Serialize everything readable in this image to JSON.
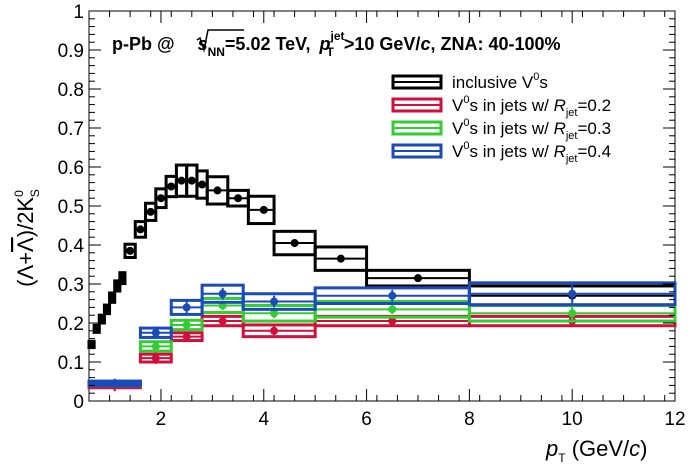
{
  "chart_data": {
    "type": "scatter",
    "header": {
      "collision": "p-Pb @",
      "energy_sym": "s",
      "energy_sub": "NN",
      "energy_val": "=5.02 TeV,",
      "pt_sym": "p",
      "pt_sup": "jet",
      "pt_sub": "T",
      "pt_cut": ">10 GeV/",
      "pt_unit": "c",
      "centrality": ", ZNA: 40-100%"
    },
    "xlabel": {
      "sym": "p",
      "sub": "T",
      "unit_open": " (GeV/",
      "unit_c": "c",
      "unit_close": ")"
    },
    "ylabel": {
      "ratio": "(Λ+",
      "lambdabar": "Λ",
      "slash": ")/2K",
      "sup": "0",
      "sub": "S"
    },
    "xlim": [
      0.6,
      12
    ],
    "ylim": [
      0,
      1
    ],
    "xticks": [
      "2",
      "4",
      "6",
      "8",
      "10",
      "12"
    ],
    "xtick_values": [
      2,
      4,
      6,
      8,
      10,
      12
    ],
    "yticks": [
      "0",
      "0.1",
      "0.2",
      "0.3",
      "0.4",
      "0.5",
      "0.6",
      "0.7",
      "0.8",
      "0.9",
      "1"
    ],
    "ytick_values": [
      0,
      0.1,
      0.2,
      0.3,
      0.4,
      0.5,
      0.6,
      0.7,
      0.8,
      0.9,
      1.0
    ],
    "grid": false,
    "legend_position": "top-right",
    "series": [
      {
        "name": "inclusive V0s",
        "legend": {
          "pre": "inclusive V",
          "sup": "0",
          "post": "s",
          "R": "",
          "Rsub": "",
          "Rval": ""
        },
        "color": "#000000",
        "points": [
          {
            "x": 0.65,
            "y": 0.145,
            "xlo": 0.6,
            "xhi": 0.7,
            "sys": 0.008
          },
          {
            "x": 0.75,
            "y": 0.185,
            "xlo": 0.7,
            "xhi": 0.8,
            "sys": 0.009
          },
          {
            "x": 0.85,
            "y": 0.21,
            "xlo": 0.8,
            "xhi": 0.9,
            "sys": 0.01
          },
          {
            "x": 0.95,
            "y": 0.235,
            "xlo": 0.9,
            "xhi": 1.0,
            "sys": 0.011
          },
          {
            "x": 1.05,
            "y": 0.265,
            "xlo": 1.0,
            "xhi": 1.1,
            "sys": 0.012
          },
          {
            "x": 1.15,
            "y": 0.295,
            "xlo": 1.1,
            "xhi": 1.2,
            "sys": 0.013
          },
          {
            "x": 1.25,
            "y": 0.315,
            "xlo": 1.2,
            "xhi": 1.3,
            "sys": 0.014
          },
          {
            "x": 1.4,
            "y": 0.385,
            "xlo": 1.3,
            "xhi": 1.5,
            "sys": 0.017
          },
          {
            "x": 1.6,
            "y": 0.44,
            "xlo": 1.5,
            "xhi": 1.7,
            "sys": 0.02
          },
          {
            "x": 1.8,
            "y": 0.485,
            "xlo": 1.7,
            "xhi": 1.9,
            "sys": 0.022
          },
          {
            "x": 2.0,
            "y": 0.52,
            "xlo": 1.9,
            "xhi": 2.1,
            "sys": 0.024
          },
          {
            "x": 2.2,
            "y": 0.55,
            "xlo": 2.1,
            "xhi": 2.3,
            "sys": 0.026
          },
          {
            "x": 2.4,
            "y": 0.565,
            "xlo": 2.3,
            "xhi": 2.5,
            "sys": 0.04
          },
          {
            "x": 2.6,
            "y": 0.565,
            "xlo": 2.5,
            "xhi": 2.7,
            "sys": 0.04
          },
          {
            "x": 2.8,
            "y": 0.555,
            "xlo": 2.7,
            "xhi": 2.9,
            "sys": 0.035
          },
          {
            "x": 3.1,
            "y": 0.54,
            "xlo": 2.9,
            "xhi": 3.3,
            "sys": 0.035
          },
          {
            "x": 3.5,
            "y": 0.52,
            "xlo": 3.3,
            "xhi": 3.7,
            "sys": 0.02
          },
          {
            "x": 4.0,
            "y": 0.49,
            "xlo": 3.7,
            "xhi": 4.2,
            "sys": 0.035
          },
          {
            "x": 4.6,
            "y": 0.405,
            "xlo": 4.2,
            "xhi": 5.0,
            "sys": 0.03
          },
          {
            "x": 5.5,
            "y": 0.365,
            "xlo": 5.0,
            "xhi": 6.0,
            "sys": 0.03
          },
          {
            "x": 7.0,
            "y": 0.315,
            "xlo": 6.0,
            "xhi": 8.0,
            "sys": 0.02
          },
          {
            "x": 10.0,
            "y": 0.27,
            "xlo": 8.0,
            "xhi": 12.0,
            "sys": 0.025
          }
        ]
      },
      {
        "name": "V0s in jets w/ Rjet=0.2",
        "legend": {
          "pre": "V",
          "sup": "0",
          "post": "s in jets w/ ",
          "R": "R",
          "Rsub": "jet",
          "Rval": "=0.2"
        },
        "color": "#d0103a",
        "points": [
          {
            "x": 1.1,
            "y": 0.04,
            "xlo": 0.6,
            "xhi": 1.6,
            "sys": 0.006,
            "stat": 0.015
          },
          {
            "x": 1.9,
            "y": 0.11,
            "xlo": 1.6,
            "xhi": 2.2,
            "sys": 0.01,
            "stat": 0.015
          },
          {
            "x": 2.5,
            "y": 0.165,
            "xlo": 2.2,
            "xhi": 2.8,
            "sys": 0.01,
            "stat": 0.012
          },
          {
            "x": 3.2,
            "y": 0.205,
            "xlo": 2.8,
            "xhi": 3.6,
            "sys": 0.012,
            "stat": 0.012
          },
          {
            "x": 4.2,
            "y": 0.18,
            "xlo": 3.6,
            "xhi": 5.0,
            "sys": 0.015,
            "stat": 0.012
          },
          {
            "x": 6.5,
            "y": 0.205,
            "xlo": 5.0,
            "xhi": 8.0,
            "sys": 0.012,
            "stat": 0.012
          },
          {
            "x": 10.0,
            "y": 0.205,
            "xlo": 8.0,
            "xhi": 12.0,
            "sys": 0.012,
            "stat": 0.015
          }
        ]
      },
      {
        "name": "V0s in jets w/ Rjet=0.3",
        "legend": {
          "pre": "V",
          "sup": "0",
          "post": "s in jets w/ ",
          "R": "R",
          "Rsub": "jet",
          "Rval": "=0.3"
        },
        "color": "#33cc33",
        "points": [
          {
            "x": 1.1,
            "y": 0.045,
            "xlo": 0.6,
            "xhi": 1.6,
            "sys": 0.006,
            "stat": 0.012
          },
          {
            "x": 1.9,
            "y": 0.14,
            "xlo": 1.6,
            "xhi": 2.2,
            "sys": 0.012,
            "stat": 0.015
          },
          {
            "x": 2.5,
            "y": 0.195,
            "xlo": 2.2,
            "xhi": 2.8,
            "sys": 0.012,
            "stat": 0.012
          },
          {
            "x": 3.2,
            "y": 0.245,
            "xlo": 2.8,
            "xhi": 3.6,
            "sys": 0.018,
            "stat": 0.012
          },
          {
            "x": 4.2,
            "y": 0.225,
            "xlo": 3.6,
            "xhi": 5.0,
            "sys": 0.02,
            "stat": 0.012
          },
          {
            "x": 6.5,
            "y": 0.235,
            "xlo": 5.0,
            "xhi": 8.0,
            "sys": 0.02,
            "stat": 0.012
          },
          {
            "x": 10.0,
            "y": 0.225,
            "xlo": 8.0,
            "xhi": 12.0,
            "sys": 0.02,
            "stat": 0.025
          }
        ]
      },
      {
        "name": "V0s in jets w/ Rjet=0.4",
        "legend": {
          "pre": "V",
          "sup": "0",
          "post": "s in jets w/ ",
          "R": "R",
          "Rsub": "jet",
          "Rval": "=0.4"
        },
        "color": "#1a4bb8",
        "points": [
          {
            "x": 1.1,
            "y": 0.045,
            "xlo": 0.6,
            "xhi": 1.6,
            "sys": 0.006,
            "stat": 0.012
          },
          {
            "x": 1.9,
            "y": 0.175,
            "xlo": 1.6,
            "xhi": 2.2,
            "sys": 0.012,
            "stat": 0.015
          },
          {
            "x": 2.5,
            "y": 0.24,
            "xlo": 2.2,
            "xhi": 2.8,
            "sys": 0.018,
            "stat": 0.015
          },
          {
            "x": 3.2,
            "y": 0.275,
            "xlo": 2.8,
            "xhi": 3.6,
            "sys": 0.022,
            "stat": 0.015
          },
          {
            "x": 4.2,
            "y": 0.255,
            "xlo": 3.6,
            "xhi": 5.0,
            "sys": 0.02,
            "stat": 0.015
          },
          {
            "x": 6.5,
            "y": 0.27,
            "xlo": 5.0,
            "xhi": 8.0,
            "sys": 0.02,
            "stat": 0.015
          },
          {
            "x": 10.0,
            "y": 0.275,
            "xlo": 8.0,
            "xhi": 12.0,
            "sys": 0.028,
            "stat": 0.03
          }
        ]
      }
    ]
  }
}
